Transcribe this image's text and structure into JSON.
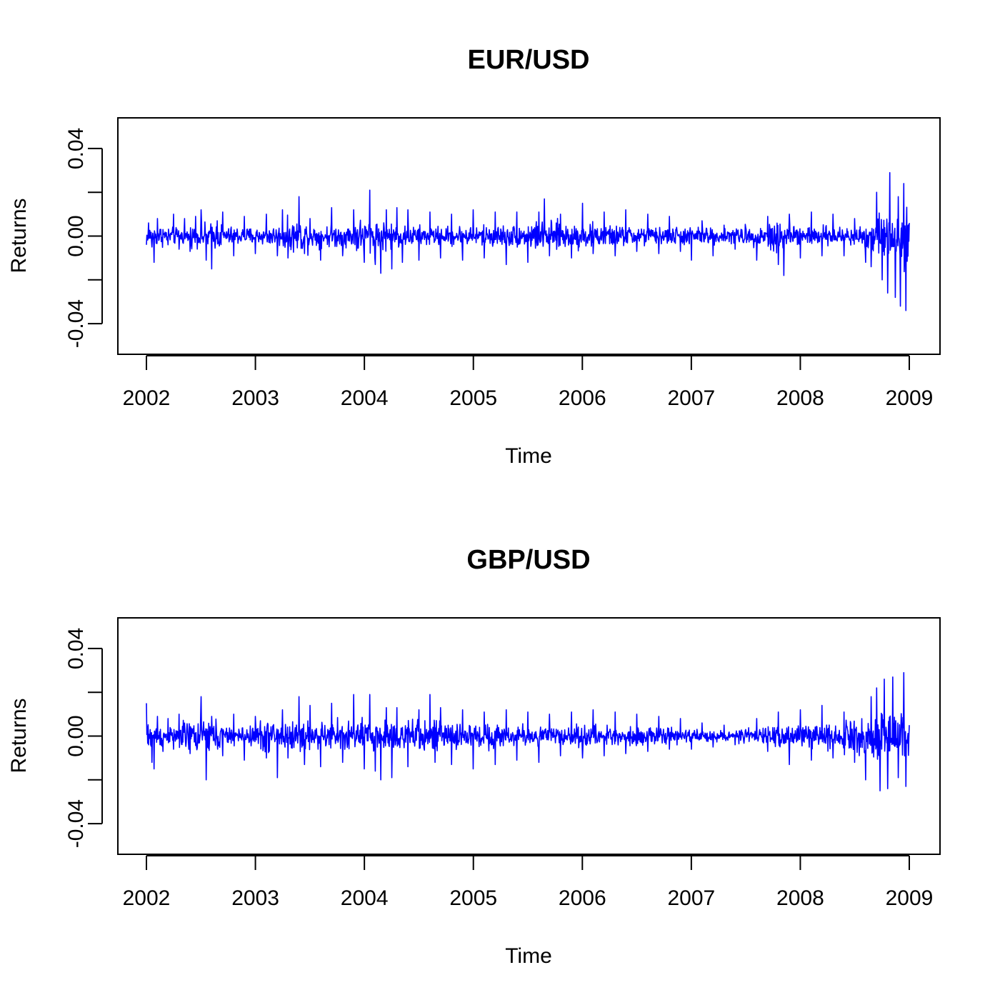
{
  "chart_data": [
    {
      "type": "line",
      "title": "EUR/USD",
      "xlabel": "Time",
      "ylabel": "Returns",
      "x_ticks": [
        "2002",
        "2003",
        "2004",
        "2005",
        "2006",
        "2007",
        "2008",
        "2009"
      ],
      "y_ticks": [
        "-0.04",
        "0.00",
        "0.04"
      ],
      "y_tick_values": [
        -0.04,
        0.0,
        0.04
      ],
      "y_minor_tick_values": [
        -0.02,
        0.02
      ],
      "xlim": [
        2002,
        2009
      ],
      "ylim": [
        -0.054,
        0.054
      ],
      "grid": false,
      "series": [
        {
          "color": "#0000ff",
          "sampling": "daily",
          "points": [
            [
              2002.0,
              -0.004
            ],
            [
              2002.02,
              0.006
            ],
            [
              2002.05,
              -0.005
            ],
            [
              2002.07,
              -0.012
            ],
            [
              2002.1,
              0.008
            ],
            [
              2002.15,
              0.003
            ],
            [
              2002.2,
              -0.004
            ],
            [
              2002.25,
              0.01
            ],
            [
              2002.3,
              -0.006
            ],
            [
              2002.35,
              0.008
            ],
            [
              2002.4,
              -0.007
            ],
            [
              2002.45,
              0.009
            ],
            [
              2002.5,
              0.012
            ],
            [
              2002.55,
              -0.011
            ],
            [
              2002.6,
              -0.015
            ],
            [
              2002.65,
              0.007
            ],
            [
              2002.7,
              0.011
            ],
            [
              2002.8,
              -0.009
            ],
            [
              2002.9,
              0.009
            ],
            [
              2003.0,
              -0.008
            ],
            [
              2003.1,
              0.01
            ],
            [
              2003.2,
              -0.009
            ],
            [
              2003.25,
              0.012
            ],
            [
              2003.3,
              -0.01
            ],
            [
              2003.4,
              0.018
            ],
            [
              2003.45,
              -0.008
            ],
            [
              2003.5,
              0.008
            ],
            [
              2003.6,
              -0.011
            ],
            [
              2003.7,
              0.013
            ],
            [
              2003.8,
              -0.009
            ],
            [
              2003.9,
              0.012
            ],
            [
              2004.0,
              -0.012
            ],
            [
              2004.05,
              0.021
            ],
            [
              2004.1,
              -0.013
            ],
            [
              2004.15,
              -0.017
            ],
            [
              2004.2,
              0.012
            ],
            [
              2004.25,
              -0.015
            ],
            [
              2004.3,
              0.013
            ],
            [
              2004.35,
              -0.012
            ],
            [
              2004.4,
              0.012
            ],
            [
              2004.5,
              -0.011
            ],
            [
              2004.6,
              0.011
            ],
            [
              2004.7,
              -0.01
            ],
            [
              2004.8,
              0.01
            ],
            [
              2004.9,
              -0.011
            ],
            [
              2005.0,
              0.012
            ],
            [
              2005.1,
              -0.01
            ],
            [
              2005.2,
              0.011
            ],
            [
              2005.3,
              -0.013
            ],
            [
              2005.4,
              0.011
            ],
            [
              2005.5,
              -0.012
            ],
            [
              2005.6,
              0.011
            ],
            [
              2005.65,
              0.017
            ],
            [
              2005.7,
              -0.009
            ],
            [
              2005.8,
              0.01
            ],
            [
              2005.9,
              -0.01
            ],
            [
              2006.0,
              0.015
            ],
            [
              2006.1,
              -0.008
            ],
            [
              2006.2,
              0.011
            ],
            [
              2006.3,
              -0.009
            ],
            [
              2006.4,
              0.012
            ],
            [
              2006.5,
              -0.007
            ],
            [
              2006.6,
              0.01
            ],
            [
              2006.7,
              -0.008
            ],
            [
              2006.8,
              0.009
            ],
            [
              2006.9,
              -0.007
            ],
            [
              2007.0,
              -0.011
            ],
            [
              2007.1,
              0.007
            ],
            [
              2007.2,
              -0.009
            ],
            [
              2007.3,
              0.005
            ],
            [
              2007.4,
              -0.006
            ],
            [
              2007.5,
              0.004
            ],
            [
              2007.6,
              -0.011
            ],
            [
              2007.7,
              0.009
            ],
            [
              2007.8,
              -0.013
            ],
            [
              2007.85,
              -0.018
            ],
            [
              2007.9,
              0.01
            ],
            [
              2008.0,
              -0.01
            ],
            [
              2008.1,
              0.011
            ],
            [
              2008.2,
              -0.009
            ],
            [
              2008.3,
              0.01
            ],
            [
              2008.4,
              -0.009
            ],
            [
              2008.5,
              0.008
            ],
            [
              2008.6,
              -0.012
            ],
            [
              2008.65,
              -0.014
            ],
            [
              2008.7,
              0.02
            ],
            [
              2008.75,
              -0.02
            ],
            [
              2008.8,
              -0.026
            ],
            [
              2008.82,
              0.029
            ],
            [
              2008.87,
              -0.028
            ],
            [
              2008.9,
              0.018
            ],
            [
              2008.92,
              -0.032
            ],
            [
              2008.95,
              0.024
            ],
            [
              2008.97,
              -0.034
            ],
            [
              2009.0,
              0.006
            ]
          ]
        }
      ]
    },
    {
      "type": "line",
      "title": "GBP/USD",
      "xlabel": "Time",
      "ylabel": "Returns",
      "x_ticks": [
        "2002",
        "2003",
        "2004",
        "2005",
        "2006",
        "2007",
        "2008",
        "2009"
      ],
      "y_ticks": [
        "-0.04",
        "0.00",
        "0.04"
      ],
      "y_tick_values": [
        -0.04,
        0.0,
        0.04
      ],
      "y_minor_tick_values": [
        -0.02,
        0.02
      ],
      "xlim": [
        2002,
        2009
      ],
      "ylim": [
        -0.054,
        0.054
      ],
      "grid": false,
      "series": [
        {
          "color": "#0000ff",
          "sampling": "daily",
          "points": [
            [
              2002.0,
              0.015
            ],
            [
              2002.02,
              -0.004
            ],
            [
              2002.05,
              -0.012
            ],
            [
              2002.07,
              -0.015
            ],
            [
              2002.1,
              0.009
            ],
            [
              2002.15,
              -0.007
            ],
            [
              2002.2,
              0.008
            ],
            [
              2002.25,
              -0.006
            ],
            [
              2002.3,
              0.01
            ],
            [
              2002.4,
              -0.008
            ],
            [
              2002.5,
              0.018
            ],
            [
              2002.55,
              -0.02
            ],
            [
              2002.6,
              0.009
            ],
            [
              2002.7,
              -0.009
            ],
            [
              2002.8,
              0.01
            ],
            [
              2002.9,
              -0.011
            ],
            [
              2003.0,
              0.009
            ],
            [
              2003.1,
              -0.01
            ],
            [
              2003.2,
              -0.019
            ],
            [
              2003.25,
              0.012
            ],
            [
              2003.3,
              -0.01
            ],
            [
              2003.4,
              0.018
            ],
            [
              2003.45,
              -0.013
            ],
            [
              2003.5,
              0.014
            ],
            [
              2003.6,
              -0.014
            ],
            [
              2003.7,
              0.015
            ],
            [
              2003.8,
              -0.012
            ],
            [
              2003.9,
              0.019
            ],
            [
              2004.0,
              -0.015
            ],
            [
              2004.05,
              0.019
            ],
            [
              2004.1,
              -0.016
            ],
            [
              2004.15,
              -0.02
            ],
            [
              2004.2,
              0.013
            ],
            [
              2004.25,
              -0.019
            ],
            [
              2004.3,
              0.013
            ],
            [
              2004.4,
              -0.014
            ],
            [
              2004.5,
              0.012
            ],
            [
              2004.6,
              0.019
            ],
            [
              2004.65,
              -0.012
            ],
            [
              2004.7,
              0.013
            ],
            [
              2004.8,
              -0.013
            ],
            [
              2004.9,
              0.012
            ],
            [
              2005.0,
              -0.015
            ],
            [
              2005.1,
              0.011
            ],
            [
              2005.2,
              -0.013
            ],
            [
              2005.3,
              0.012
            ],
            [
              2005.4,
              -0.011
            ],
            [
              2005.5,
              0.011
            ],
            [
              2005.6,
              -0.012
            ],
            [
              2005.7,
              0.01
            ],
            [
              2005.8,
              -0.009
            ],
            [
              2005.9,
              0.011
            ],
            [
              2006.0,
              -0.01
            ],
            [
              2006.1,
              0.012
            ],
            [
              2006.2,
              -0.009
            ],
            [
              2006.3,
              0.011
            ],
            [
              2006.4,
              -0.008
            ],
            [
              2006.5,
              0.01
            ],
            [
              2006.6,
              -0.007
            ],
            [
              2006.7,
              0.009
            ],
            [
              2006.8,
              -0.006
            ],
            [
              2006.9,
              0.008
            ],
            [
              2007.0,
              -0.006
            ],
            [
              2007.1,
              0.006
            ],
            [
              2007.2,
              -0.005
            ],
            [
              2007.3,
              0.005
            ],
            [
              2007.4,
              -0.004
            ],
            [
              2007.5,
              0.003
            ],
            [
              2007.6,
              0.008
            ],
            [
              2007.7,
              -0.007
            ],
            [
              2007.8,
              0.011
            ],
            [
              2007.9,
              -0.013
            ],
            [
              2008.0,
              0.012
            ],
            [
              2008.1,
              -0.011
            ],
            [
              2008.2,
              0.014
            ],
            [
              2008.3,
              -0.01
            ],
            [
              2008.4,
              0.011
            ],
            [
              2008.5,
              -0.012
            ],
            [
              2008.6,
              -0.02
            ],
            [
              2008.65,
              0.018
            ],
            [
              2008.7,
              0.022
            ],
            [
              2008.73,
              -0.025
            ],
            [
              2008.77,
              0.026
            ],
            [
              2008.8,
              -0.024
            ],
            [
              2008.85,
              0.027
            ],
            [
              2008.9,
              -0.019
            ],
            [
              2008.95,
              0.029
            ],
            [
              2008.97,
              -0.023
            ],
            [
              2009.0,
              0.005
            ]
          ]
        }
      ]
    }
  ]
}
